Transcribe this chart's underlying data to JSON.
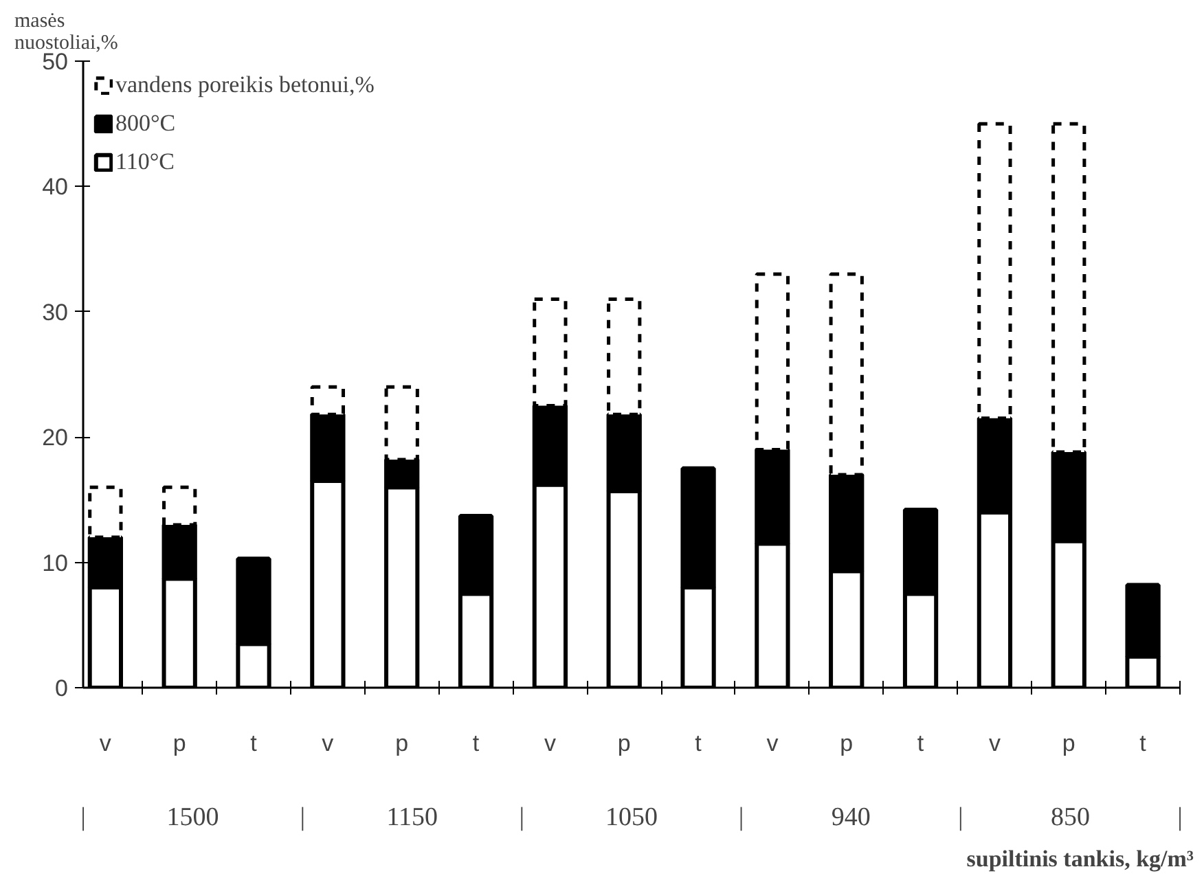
{
  "chart_data": {
    "type": "bar",
    "stacked": true,
    "xlabel": "supiltinis tankis, kg/m³",
    "ylabel": "masės nuostoliai,%",
    "categories": [
      "v",
      "p",
      "t",
      "v",
      "p",
      "t",
      "v",
      "p",
      "t",
      "v",
      "p",
      "t",
      "v",
      "p",
      "t"
    ],
    "series": [
      {
        "name": "110°C",
        "color": "#ffffff",
        "values": [
          8,
          8.7,
          3.5,
          16.5,
          16,
          7.5,
          16.2,
          15.7,
          8,
          11.5,
          9.3,
          7.5,
          14,
          11.7,
          2.5
        ]
      },
      {
        "name": "800°C",
        "color": "#000000",
        "values": [
          4,
          4.3,
          6.8,
          5.3,
          2.2,
          6.2,
          6.3,
          6.1,
          9.5,
          7.5,
          7.7,
          6.7,
          7.5,
          7.1,
          5.7
        ]
      },
      {
        "name": "vandens poreikis betonui,%",
        "color": "#ffffff",
        "line_style": "dashed",
        "values": [
          4,
          3,
          null,
          2.2,
          5.8,
          null,
          8.5,
          9.2,
          null,
          14,
          16,
          null,
          23.5,
          26.2,
          null
        ]
      }
    ],
    "ylim": [
      0,
      50
    ],
    "yticks": [
      0,
      10,
      20,
      30,
      40,
      50
    ],
    "grid": false,
    "legend": "top left",
    "annotations": [
      "|",
      "1500",
      "|",
      "1150",
      "|",
      "1050",
      "|",
      "940",
      "|",
      "850",
      "|"
    ]
  }
}
